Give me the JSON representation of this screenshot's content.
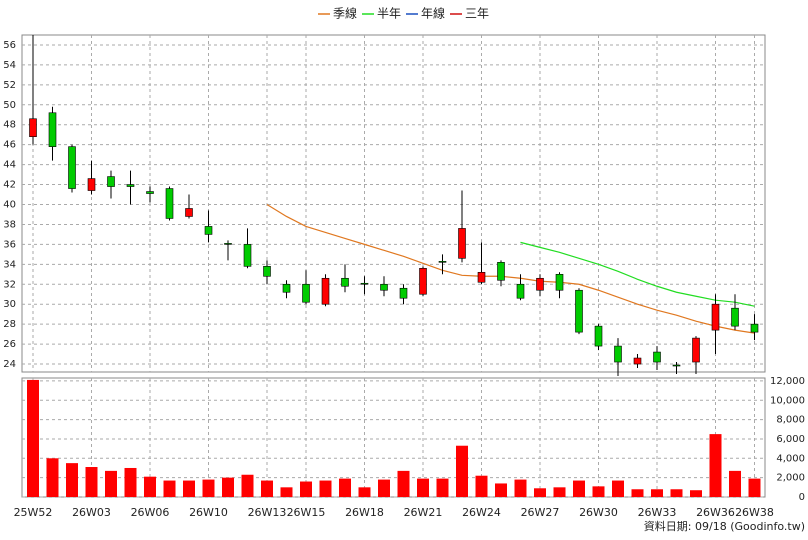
{
  "chart_data": {
    "type": "candlestick",
    "categories": [
      "25W52",
      null,
      null,
      "26W03",
      null,
      null,
      "26W06",
      null,
      null,
      "26W10",
      null,
      null,
      "26W13",
      null,
      "26W15",
      null,
      null,
      "26W18",
      null,
      null,
      "26W21",
      null,
      null,
      "26W24",
      null,
      null,
      "26W27",
      null,
      null,
      "26W30",
      null,
      null,
      "26W33",
      null,
      null,
      "26W36",
      null,
      "26W38"
    ],
    "open": [
      46.8,
      49.2,
      45.8,
      41.4,
      42.8,
      42.0,
      41.3,
      41.6,
      38.8,
      37.8,
      36.1,
      36.0,
      33.8,
      32.0,
      32.0,
      30.0,
      32.6,
      32.1,
      32.0,
      31.6,
      31.0,
      34.3,
      34.6,
      32.2,
      34.2,
      32.0,
      31.4,
      33.0,
      31.4,
      27.8,
      25.8,
      24.0,
      25.2,
      23.9,
      24.2,
      27.4,
      29.6,
      28.0
    ],
    "high": [
      57.0,
      49.8,
      46.0,
      44.4,
      43.4,
      43.4,
      41.8,
      41.8,
      41.0,
      39.4,
      36.4,
      37.6,
      34.4,
      32.4,
      33.4,
      33.0,
      34.0,
      32.8,
      32.8,
      32.0,
      33.8,
      35.0,
      41.4,
      36.2,
      34.4,
      33.0,
      33.0,
      33.2,
      31.6,
      28.0,
      26.6,
      25.0,
      25.8,
      24.2,
      26.8,
      31.0,
      31.0,
      29.0
    ],
    "low": [
      46.0,
      44.4,
      41.2,
      41.0,
      40.6,
      40.0,
      40.2,
      38.4,
      38.6,
      36.2,
      34.4,
      33.6,
      32.0,
      30.6,
      30.0,
      29.8,
      31.2,
      31.0,
      30.8,
      30.0,
      30.8,
      33.0,
      34.2,
      32.0,
      31.8,
      30.4,
      30.8,
      30.6,
      27.0,
      25.4,
      22.8,
      23.6,
      23.4,
      23.0,
      23.0,
      25.0,
      27.4,
      26.4
    ],
    "close": [
      48.6,
      45.8,
      41.6,
      42.6,
      41.8,
      41.8,
      41.1,
      38.6,
      39.6,
      37.0,
      36.0,
      33.8,
      32.8,
      31.2,
      30.2,
      32.6,
      31.8,
      32.0,
      31.4,
      30.6,
      33.6,
      34.2,
      37.6,
      33.2,
      32.4,
      30.6,
      32.6,
      31.4,
      27.2,
      25.8,
      24.2,
      24.6,
      24.2,
      23.8,
      26.6,
      30.0,
      27.8,
      27.2
    ],
    "up_color": "#ff0000",
    "down_color": "#00cc00",
    "series": [
      {
        "name": "季線",
        "color": "#e07820",
        "values": [
          null,
          null,
          null,
          null,
          null,
          null,
          null,
          null,
          null,
          null,
          null,
          null,
          40.0,
          38.8,
          37.8,
          37.2,
          36.6,
          36.0,
          35.4,
          34.8,
          34.1,
          33.4,
          32.9,
          32.8,
          32.8,
          32.6,
          32.3,
          32.2,
          32.0,
          31.4,
          30.7,
          30.0,
          29.4,
          28.9,
          28.3,
          27.8,
          27.4,
          27.1
        ]
      },
      {
        "name": "半年",
        "color": "#22dd22",
        "values": [
          null,
          null,
          null,
          null,
          null,
          null,
          null,
          null,
          null,
          null,
          null,
          null,
          null,
          null,
          null,
          null,
          null,
          null,
          null,
          null,
          null,
          null,
          null,
          null,
          null,
          36.2,
          35.7,
          35.2,
          34.6,
          34.0,
          33.3,
          32.5,
          31.8,
          31.2,
          30.8,
          30.4,
          30.2,
          29.8
        ]
      },
      {
        "name": "年線",
        "color": "#1a50c0",
        "values": [
          null,
          null,
          null,
          null,
          null,
          null,
          null,
          null,
          null,
          null,
          null,
          null,
          null,
          null,
          null,
          null,
          null,
          null,
          null,
          null,
          null,
          null,
          null,
          null,
          null,
          null,
          null,
          null,
          null,
          null,
          null,
          null,
          null,
          null,
          null,
          null,
          null,
          null
        ]
      },
      {
        "name": "三年",
        "color": "#d01010",
        "values": [
          null,
          null,
          null,
          null,
          null,
          null,
          null,
          null,
          null,
          null,
          null,
          null,
          null,
          null,
          null,
          null,
          null,
          null,
          null,
          null,
          null,
          null,
          null,
          null,
          null,
          null,
          null,
          null,
          null,
          null,
          null,
          null,
          null,
          null,
          null,
          null,
          null,
          null
        ]
      }
    ],
    "ylim": [
      23.2,
      57
    ],
    "yticks": [
      24,
      26,
      28,
      30,
      32,
      34,
      36,
      38,
      40,
      42,
      44,
      46,
      48,
      50,
      52,
      54,
      56
    ],
    "volume": {
      "color": "#ff0000",
      "values": [
        12100,
        4000,
        3500,
        3100,
        2700,
        3000,
        2100,
        1700,
        1700,
        1800,
        2000,
        2300,
        1700,
        1000,
        1600,
        1700,
        1900,
        1000,
        1800,
        2700,
        1900,
        1900,
        5300,
        2200,
        1400,
        1800,
        900,
        1000,
        1700,
        1100,
        1700,
        800,
        800,
        800,
        700,
        6500,
        2700,
        1900
      ],
      "ylim": [
        0,
        12300
      ],
      "yticks": [
        0,
        {
          "value": 2000,
          "label": "2,000"
        },
        {
          "value": 4000,
          "label": "4,000"
        },
        {
          "value": 6000,
          "label": "6,000"
        },
        {
          "value": 8000,
          "label": "8,000"
        },
        {
          "value": 10000,
          "label": "10,000"
        },
        {
          "value": 12000,
          "label": "12,000"
        }
      ]
    },
    "grid": true,
    "footer": "資料日期: 09/18 (Goodinfo.tw)"
  }
}
